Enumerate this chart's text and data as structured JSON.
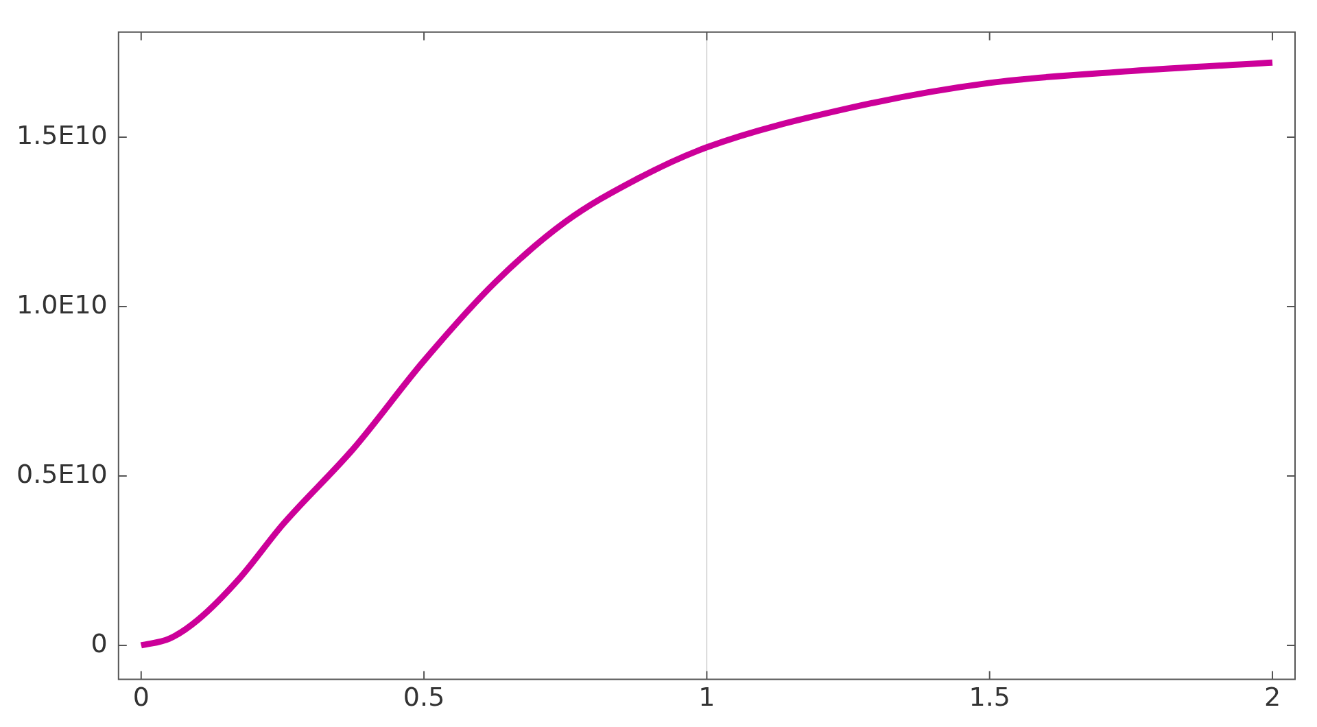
{
  "chart_data": {
    "type": "line",
    "x": [
      0,
      0.05,
      0.1,
      0.175,
      0.25,
      0.375,
      0.5,
      0.625,
      0.75,
      0.875,
      1,
      1.25,
      1.5,
      1.75,
      2
    ],
    "series": [
      {
        "color": "#cc0099",
        "values": [
          0,
          200000000.0,
          750000000.0,
          2000000000.0,
          3560000000.0,
          5800000000.0,
          8400000000.0,
          10700000000.0,
          12500000000.0,
          13750000000.0,
          14700000000.0,
          15850000000.0,
          16600000000.0,
          16950000000.0,
          17200000000.0
        ]
      }
    ],
    "xlim": [
      -0.04,
      2.04
    ],
    "xticks": [
      0,
      0.5,
      1,
      1.5,
      2
    ],
    "ylim": [
      -1000000000.0,
      18100000000.0
    ],
    "yticks": [
      0,
      {
        "value": 5000000000.0,
        "label": "0.5E10"
      },
      {
        "value": 10000000000.0,
        "label": "1.0E10"
      },
      {
        "value": 15000000000.0,
        "label": "1.5E10"
      }
    ],
    "ref_lines": [
      {
        "axis": "x",
        "value": 1,
        "label": null,
        "color": "#cccccc"
      }
    ],
    "grid": false,
    "legend": false,
    "marker": "none",
    "line_style": "solid"
  }
}
